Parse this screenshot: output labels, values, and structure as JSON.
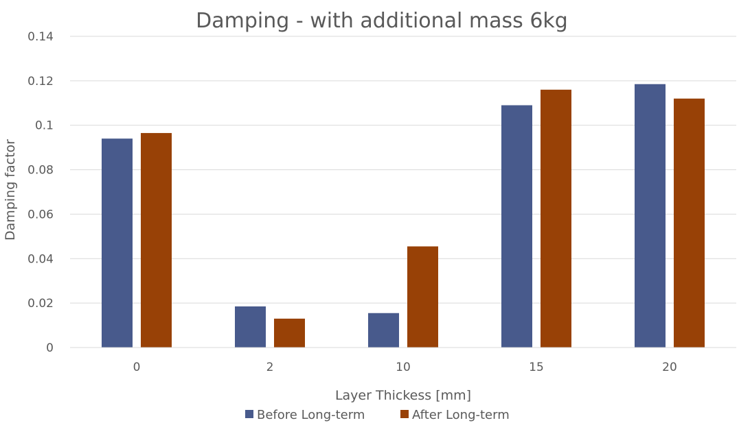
{
  "chart_data": {
    "type": "bar",
    "title": "Damping - with additional mass 6kg",
    "xlabel": "Layer Thickess [mm]",
    "ylabel": "Damping factor",
    "categories": [
      "0",
      "2",
      "10",
      "15",
      "20"
    ],
    "ylim": [
      0,
      0.14
    ],
    "yticks": [
      "0",
      "0.02",
      "0.04",
      "0.06",
      "0.08",
      "0.1",
      "0.12",
      "0.14"
    ],
    "grid": true,
    "legend_position": "bottom",
    "series": [
      {
        "name": "Before Long-term",
        "color": "#485a8c",
        "values": [
          0.094,
          0.0185,
          0.0155,
          0.109,
          0.1185
        ]
      },
      {
        "name": "After Long-term",
        "color": "#984106",
        "values": [
          0.0965,
          0.013,
          0.0455,
          0.116,
          0.112
        ]
      }
    ]
  }
}
